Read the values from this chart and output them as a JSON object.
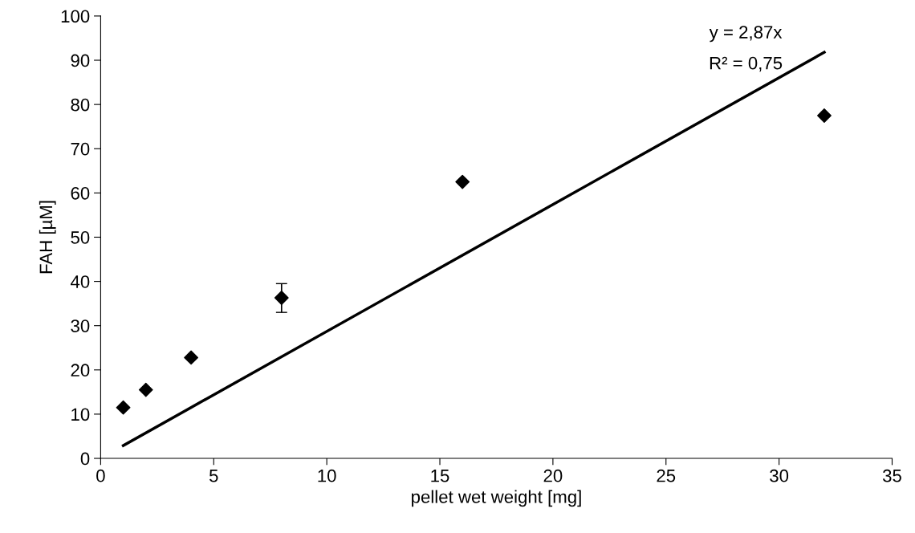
{
  "chart_data": {
    "type": "scatter",
    "xlabel": "pellet wet weight [mg]",
    "ylabel": "FAH [µM]",
    "series": [
      {
        "color": "#000000",
        "marker": "diamond",
        "x": [
          1,
          2,
          4,
          8,
          16,
          32
        ],
        "values": [
          11.5,
          15.5,
          22.8,
          36.3,
          62.5,
          77.5
        ],
        "errors": [
          null,
          null,
          null,
          [
            33,
            39.5
          ],
          null,
          null
        ]
      },
      {
        "type": "line",
        "color": "#000000",
        "marker": "none",
        "line_style": "solid",
        "x": [
          1,
          32
        ],
        "values": [
          2.9,
          91.8
        ]
      }
    ],
    "annotations": [
      "y = 2,87x",
      "R² = 0,75"
    ],
    "xlim": [
      0,
      35
    ],
    "xticks": [
      0,
      5,
      10,
      15,
      20,
      25,
      30,
      35
    ],
    "ylim": [
      0,
      100
    ],
    "yticks": [
      0,
      10,
      20,
      30,
      40,
      50,
      60,
      70,
      80,
      90,
      100
    ],
    "grid": false,
    "legend": false
  }
}
